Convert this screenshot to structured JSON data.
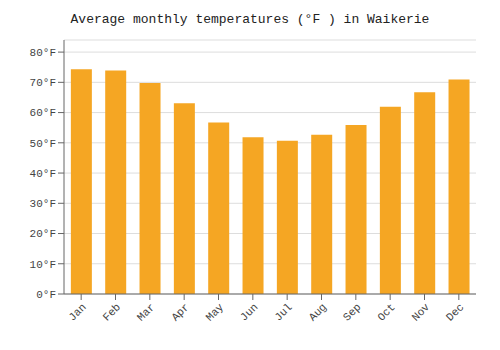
{
  "chart_data": {
    "type": "bar",
    "title": "Average monthly temperatures (°F ) in Waikerie",
    "categories": [
      "Jan",
      "Feb",
      "Mar",
      "Apr",
      "May",
      "Jun",
      "Jul",
      "Aug",
      "Sep",
      "Oct",
      "Nov",
      "Dec"
    ],
    "values": [
      74.3,
      73.9,
      69.8,
      63.1,
      56.7,
      51.8,
      50.7,
      52.7,
      55.9,
      61.9,
      66.7,
      70.9
    ],
    "color": "#F5A623",
    "ylim": [
      0,
      84
    ],
    "yticks": [
      {
        "value": 0,
        "label": "0°F"
      },
      {
        "value": 10,
        "label": "10°F"
      },
      {
        "value": 20,
        "label": "20°F"
      },
      {
        "value": 30,
        "label": "30°F"
      },
      {
        "value": 40,
        "label": "40°F"
      },
      {
        "value": 50,
        "label": "50°F"
      },
      {
        "value": 60,
        "label": "60°F"
      },
      {
        "value": 70,
        "label": "70°F"
      },
      {
        "value": 80,
        "label": "80°F"
      }
    ],
    "grid": true
  }
}
